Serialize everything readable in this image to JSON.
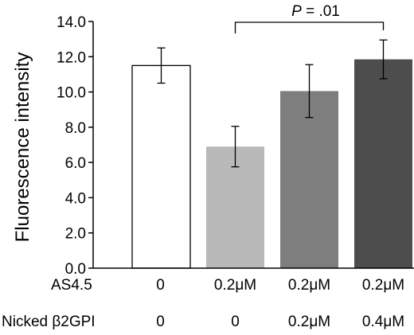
{
  "chart_data": {
    "type": "bar",
    "ylabel": "Fluorescence intensity",
    "ylim": [
      0,
      14
    ],
    "yticks": [
      "0.0",
      "2.0",
      "4.0",
      "6.0",
      "8.0",
      "10.0",
      "12.0",
      "14.0"
    ],
    "grid": false,
    "bars": [
      {
        "value": 11.5,
        "error": 1.0,
        "color": "#ffffff"
      },
      {
        "value": 6.9,
        "error": 1.15,
        "color": "#b9b9b9"
      },
      {
        "value": 10.05,
        "error": 1.5,
        "color": "#7e7e7e"
      },
      {
        "value": 11.85,
        "error": 1.1,
        "color": "#4d4d4d"
      }
    ],
    "conditions": [
      {
        "label": "AS4.5",
        "values": [
          "0",
          "0.2μM",
          "0.2μM",
          "0.2μM"
        ]
      },
      {
        "label": "Nicked β2GPI",
        "values": [
          "0",
          "0",
          "0.2μM",
          "0.4μM"
        ]
      }
    ],
    "annotation": {
      "text_italic": "P",
      "text_rest": " = .01",
      "from_bar": 1,
      "to_bar": 3
    }
  }
}
